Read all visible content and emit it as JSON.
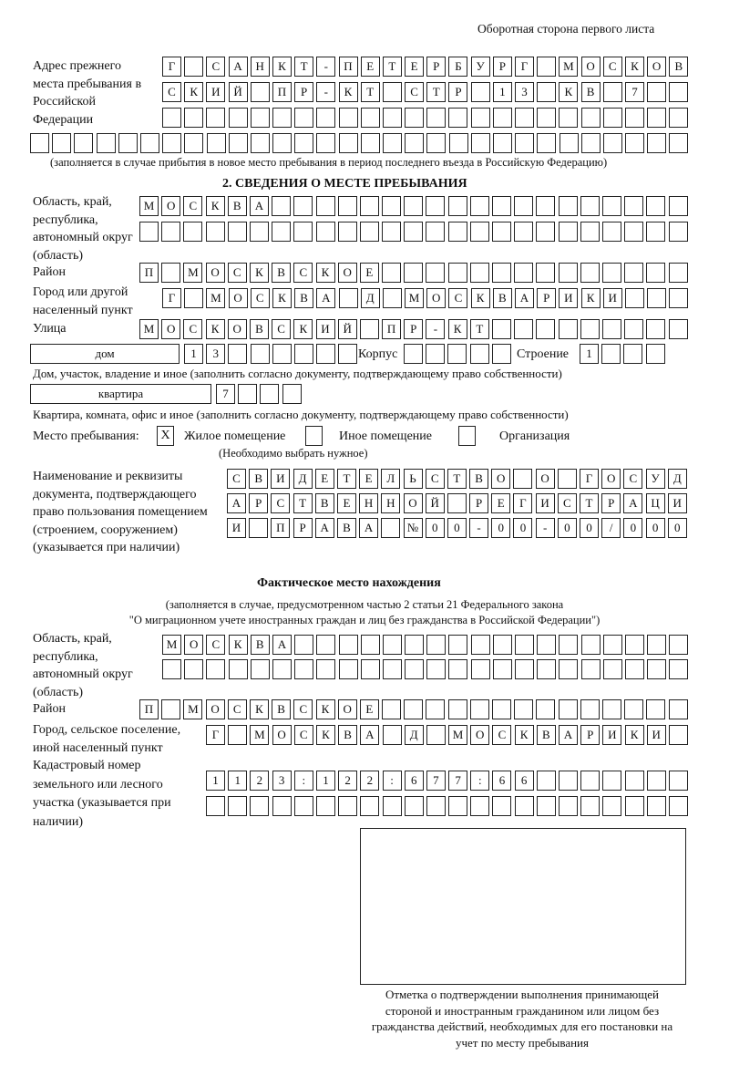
{
  "header": "Оборотная сторона первого листа",
  "prev_address": {
    "label": "Адрес прежнего места пребывания в Российской Федерации",
    "rows": [
      [
        "Г",
        "",
        "С",
        "А",
        "Н",
        "К",
        "Т",
        "-",
        "П",
        "Е",
        "Т",
        "Е",
        "Р",
        "Б",
        "У",
        "Р",
        "Г",
        "",
        "М",
        "О",
        "С",
        "К",
        "О",
        "В"
      ],
      [
        "С",
        "К",
        "И",
        "Й",
        "",
        "П",
        "Р",
        "-",
        "К",
        "Т",
        "",
        "С",
        "Т",
        "Р",
        "",
        "1",
        "3",
        "",
        "К",
        "В",
        "",
        "7",
        "",
        ""
      ],
      [
        "",
        "",
        "",
        "",
        "",
        "",
        "",
        "",
        "",
        "",
        "",
        "",
        "",
        "",
        "",
        "",
        "",
        "",
        "",
        "",
        "",
        "",
        "",
        ""
      ],
      [
        "",
        "",
        "",
        "",
        "",
        "",
        "",
        "",
        "",
        "",
        "",
        "",
        "",
        "",
        "",
        "",
        "",
        "",
        "",
        "",
        "",
        "",
        "",
        "",
        "",
        "",
        "",
        "",
        "",
        ""
      ]
    ],
    "note": "(заполняется в случае прибытия в новое место пребывания в период последнего въезда в Российскую Федерацию)"
  },
  "section2": {
    "title": "2. СВЕДЕНИЯ О МЕСТЕ ПРЕБЫВАНИЯ",
    "region_label": "Область, край, республика, автономный округ (область)",
    "region_rows": [
      [
        "М",
        "О",
        "С",
        "К",
        "В",
        "А",
        "",
        "",
        "",
        "",
        "",
        "",
        "",
        "",
        "",
        "",
        "",
        "",
        "",
        "",
        "",
        "",
        "",
        "",
        ""
      ],
      [
        "",
        "",
        "",
        "",
        "",
        "",
        "",
        "",
        "",
        "",
        "",
        "",
        "",
        "",
        "",
        "",
        "",
        "",
        "",
        "",
        "",
        "",
        "",
        "",
        ""
      ]
    ],
    "district_label": "Район",
    "district": [
      "П",
      "",
      "М",
      "О",
      "С",
      "К",
      "В",
      "С",
      "К",
      "О",
      "Е",
      "",
      "",
      "",
      "",
      "",
      "",
      "",
      "",
      "",
      "",
      "",
      "",
      "",
      ""
    ],
    "city_label": "Город или другой населенный пункт",
    "city": [
      "Г",
      "",
      "М",
      "О",
      "С",
      "К",
      "В",
      "А",
      "",
      "Д",
      "",
      "М",
      "О",
      "С",
      "К",
      "В",
      "А",
      "Р",
      "И",
      "К",
      "И",
      "",
      "",
      ""
    ],
    "street_label": "Улица",
    "street": [
      "М",
      "О",
      "С",
      "К",
      "О",
      "В",
      "С",
      "К",
      "И",
      "Й",
      "",
      "П",
      "Р",
      "-",
      "К",
      "Т",
      "",
      "",
      "",
      "",
      "",
      "",
      "",
      "",
      ""
    ],
    "house_type": "дом",
    "house": [
      "1",
      "3",
      "",
      "",
      "",
      "",
      "",
      ""
    ],
    "korpus_label": "Корпус",
    "korpus": [
      "",
      "",
      "",
      "",
      ""
    ],
    "building_label": "Строение",
    "building": [
      "1",
      "",
      "",
      ""
    ],
    "house_note": "Дом, участок, владение и иное (заполнить согласно документу, подтверждающему право собственности)",
    "flat_type": "квартира",
    "flat": [
      "7",
      "",
      "",
      ""
    ],
    "flat_note": "Квартира, комната, офис и иное (заполнить согласно документу, подтверждающему право собственности)",
    "place_label": "Место пребывания:",
    "place_options": [
      {
        "label": "Жилое помещение",
        "mark": "X"
      },
      {
        "label": "Иное помещение",
        "mark": ""
      },
      {
        "label": "Организация",
        "mark": ""
      }
    ],
    "place_note": "(Необходимо выбрать нужное)",
    "doc_label": "Наименование и реквизиты документа, подтверждающего право пользования помещением (строением, сооружением) (указывается при наличии)",
    "doc_rows": [
      [
        "С",
        "В",
        "И",
        "Д",
        "Е",
        "Т",
        "Е",
        "Л",
        "Ь",
        "С",
        "Т",
        "В",
        "О",
        "",
        "О",
        "",
        "Г",
        "О",
        "С",
        "У",
        "Д"
      ],
      [
        "А",
        "Р",
        "С",
        "Т",
        "В",
        "Е",
        "Н",
        "Н",
        "О",
        "Й",
        "",
        "Р",
        "Е",
        "Г",
        "И",
        "С",
        "Т",
        "Р",
        "А",
        "Ц",
        "И"
      ],
      [
        "И",
        "",
        "П",
        "Р",
        "А",
        "В",
        "А",
        "",
        "№",
        "0",
        "0",
        "-",
        "0",
        "0",
        "-",
        "0",
        "0",
        "/",
        "0",
        "0",
        "0"
      ]
    ]
  },
  "actual": {
    "title": "Фактическое место нахождения",
    "note1": "(заполняется в случае, предусмотренном частью 2 статьи 21 Федерального закона",
    "note2": "\"О миграционном учете иностранных граждан и лиц без гражданства в Российской Федерации\")",
    "region_label": "Область, край, республика, автономный округ (область)",
    "region_rows": [
      [
        "М",
        "О",
        "С",
        "К",
        "В",
        "А",
        "",
        "",
        "",
        "",
        "",
        "",
        "",
        "",
        "",
        "",
        "",
        "",
        "",
        "",
        "",
        "",
        "",
        ""
      ],
      [
        "",
        "",
        "",
        "",
        "",
        "",
        "",
        "",
        "",
        "",
        "",
        "",
        "",
        "",
        "",
        "",
        "",
        "",
        "",
        "",
        "",
        "",
        "",
        ""
      ]
    ],
    "district_label": "Район",
    "district": [
      "П",
      "",
      "М",
      "О",
      "С",
      "К",
      "В",
      "С",
      "К",
      "О",
      "Е",
      "",
      "",
      "",
      "",
      "",
      "",
      "",
      "",
      "",
      "",
      "",
      "",
      "",
      ""
    ],
    "city_label": "Город, сельское поселение, иной населенный пункт",
    "city": [
      "Г",
      "",
      "М",
      "О",
      "С",
      "К",
      "В",
      "А",
      "",
      "Д",
      "",
      "М",
      "О",
      "С",
      "К",
      "В",
      "А",
      "Р",
      "И",
      "К",
      "И",
      ""
    ],
    "cadastre_label": "Кадастровый номер земельного или лесного участка (указывается при наличии)",
    "cadastre_rows": [
      [
        "1",
        "1",
        "2",
        "3",
        ":",
        "1",
        "2",
        "2",
        ":",
        "6",
        "7",
        "7",
        ":",
        "6",
        "6",
        "",
        "",
        "",
        "",
        "",
        "",
        ""
      ],
      [
        "",
        "",
        "",
        "",
        "",
        "",
        "",
        "",
        "",
        "",
        "",
        "",
        "",
        "",
        "",
        "",
        "",
        "",
        "",
        "",
        "",
        ""
      ]
    ]
  },
  "stamp_caption": "Отметка о подтверждении выполнения принимающей стороной и иностранным гражданином или лицом без гражданства действий, необходимых для его постановки на учет по месту пребывания"
}
